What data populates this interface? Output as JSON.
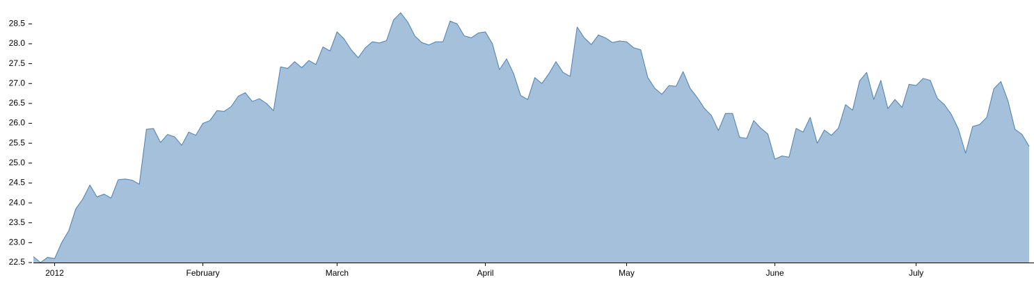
{
  "chart_data": {
    "type": "area",
    "color": "#a4c0da",
    "line_color": "#4a7fb0",
    "ylim": [
      22.5,
      29.1
    ],
    "yticks": [
      22.5,
      {
        "value": 23,
        "label": "23.0"
      },
      23.5,
      {
        "value": 24,
        "label": "24.0"
      },
      24.5,
      {
        "value": 25,
        "label": "25.0"
      },
      25.5,
      {
        "value": 26,
        "label": "26.0"
      },
      26.5,
      {
        "value": 27,
        "label": "27.0"
      },
      27.5,
      {
        "value": 28,
        "label": "28.0"
      },
      28.5
    ],
    "categories": [
      null,
      null,
      null,
      "2012",
      null,
      null,
      null,
      null,
      null,
      null,
      null,
      null,
      null,
      null,
      null,
      null,
      null,
      null,
      null,
      null,
      null,
      null,
      null,
      null,
      "February",
      null,
      null,
      null,
      null,
      null,
      null,
      null,
      null,
      null,
      null,
      null,
      null,
      null,
      null,
      null,
      null,
      null,
      null,
      "March",
      null,
      null,
      null,
      null,
      null,
      null,
      null,
      null,
      null,
      null,
      null,
      null,
      null,
      null,
      null,
      null,
      null,
      null,
      null,
      null,
      "April",
      null,
      null,
      null,
      null,
      null,
      null,
      null,
      null,
      null,
      null,
      null,
      null,
      null,
      null,
      null,
      null,
      null,
      null,
      null,
      "May",
      null,
      null,
      null,
      null,
      null,
      null,
      null,
      null,
      null,
      null,
      null,
      null,
      null,
      null,
      null,
      null,
      null,
      null,
      null,
      null,
      "June",
      null,
      null,
      null,
      null,
      null,
      null,
      null,
      null,
      null,
      null,
      null,
      null,
      null,
      null,
      null,
      null,
      null,
      null,
      null,
      "July",
      null,
      null,
      null,
      null,
      null,
      null,
      null,
      null,
      null,
      null,
      null,
      null,
      null,
      null,
      null,
      null
    ],
    "values": [
      22.65,
      22.5,
      22.63,
      22.6,
      23.0,
      23.3,
      23.85,
      24.1,
      24.45,
      24.15,
      24.22,
      24.12,
      24.58,
      24.6,
      24.57,
      24.47,
      25.85,
      25.87,
      25.52,
      25.72,
      25.66,
      25.45,
      25.78,
      25.7,
      26.0,
      26.07,
      26.32,
      26.3,
      26.42,
      26.68,
      26.77,
      26.55,
      26.62,
      26.5,
      26.32,
      27.42,
      27.38,
      27.55,
      27.4,
      27.58,
      27.48,
      27.92,
      27.82,
      28.3,
      28.12,
      27.85,
      27.65,
      27.9,
      28.05,
      28.02,
      28.08,
      28.6,
      28.78,
      28.55,
      28.2,
      28.03,
      27.97,
      28.05,
      28.05,
      28.57,
      28.5,
      28.2,
      28.15,
      28.27,
      28.3,
      28.0,
      27.35,
      27.62,
      27.25,
      26.7,
      26.6,
      27.15,
      27.0,
      27.25,
      27.55,
      27.28,
      27.18,
      28.42,
      28.15,
      27.98,
      28.22,
      28.15,
      28.03,
      28.07,
      28.05,
      27.9,
      27.85,
      27.15,
      26.88,
      26.73,
      26.95,
      26.93,
      27.3,
      26.88,
      26.65,
      26.38,
      26.2,
      25.82,
      26.25,
      26.25,
      25.65,
      25.62,
      26.07,
      25.88,
      25.73,
      25.1,
      25.18,
      25.15,
      25.87,
      25.78,
      26.15,
      25.5,
      25.83,
      25.7,
      25.88,
      26.47,
      26.33,
      27.07,
      27.28,
      26.6,
      27.08,
      26.37,
      26.6,
      26.4,
      26.98,
      26.95,
      27.13,
      27.08,
      26.63,
      26.47,
      26.22,
      25.85,
      25.25,
      25.92,
      25.97,
      26.15,
      26.87,
      27.05,
      26.57,
      25.85,
      25.72,
      25.42
    ]
  }
}
